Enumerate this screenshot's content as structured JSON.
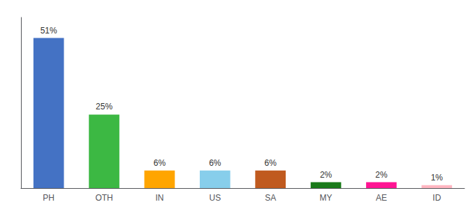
{
  "chart_data": {
    "type": "bar",
    "categories": [
      "PH",
      "OTH",
      "IN",
      "US",
      "SA",
      "MY",
      "AE",
      "ID"
    ],
    "values": [
      51,
      25,
      6,
      6,
      6,
      2,
      2,
      1
    ],
    "value_labels": [
      "51%",
      "25%",
      "6%",
      "6%",
      "6%",
      "2%",
      "2%",
      "1%"
    ],
    "colors": [
      "#4472C4",
      "#3CB843",
      "#FFA500",
      "#87CEEB",
      "#C05A1F",
      "#1A7A1A",
      "#FF1493",
      "#FFB6C1"
    ],
    "ylim": [
      0,
      58
    ],
    "data_labels": true,
    "tick_labels": "x",
    "grid": false
  }
}
